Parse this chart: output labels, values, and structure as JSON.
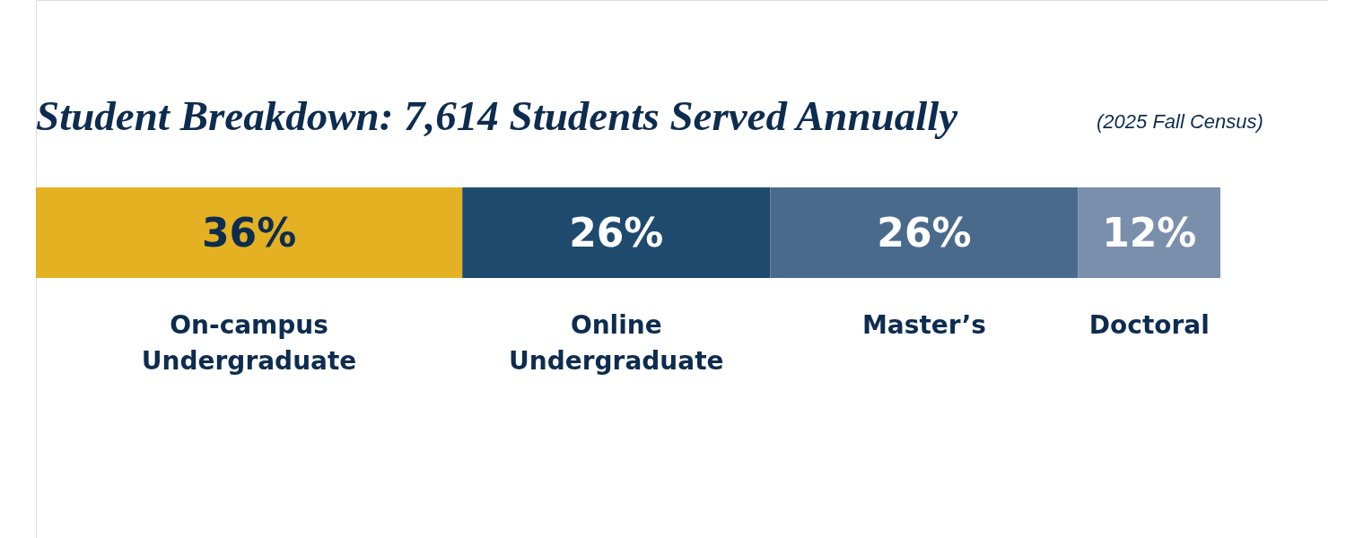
{
  "chart_data": {
    "type": "bar",
    "orientation": "horizontal",
    "stacked": true,
    "title": "Student Breakdown: 7,614 Students Served Annually",
    "subtitle": "(2025 Fall Census)",
    "categories": [
      null
    ],
    "xlim": [
      0,
      100
    ],
    "series": [
      {
        "name": "On-campus Undergraduate",
        "color": "#e3b122",
        "values": [
          36
        ],
        "value_labels": [
          "36%"
        ]
      },
      {
        "name": "Online Undergraduate",
        "color": "#1e4a6e",
        "values": [
          26
        ],
        "value_labels": [
          "26%"
        ]
      },
      {
        "name": "Master’s",
        "color": "#4a6a8c",
        "values": [
          26
        ],
        "value_labels": [
          "26%"
        ]
      },
      {
        "name": "Doctoral",
        "color": "#7a8fab",
        "values": [
          12
        ],
        "value_labels": [
          "12%"
        ]
      }
    ]
  }
}
